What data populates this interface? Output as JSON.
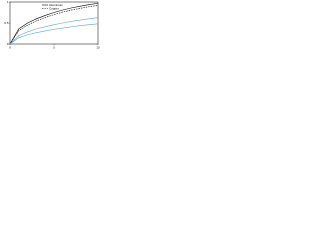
{
  "chart_data": {
    "type": "line",
    "x": [
      0,
      1,
      2,
      3,
      4,
      5,
      6,
      7,
      8,
      9,
      10
    ],
    "series": [
      {
        "name": "Aluminium",
        "color": "#000000",
        "dash": false,
        "values": [
          0,
          0.36,
          0.5,
          0.6,
          0.68,
          0.75,
          0.81,
          0.86,
          0.9,
          0.94,
          0.97
        ]
      },
      {
        "name": "Copper",
        "color": "#000000",
        "dash": true,
        "values": [
          0,
          0.32,
          0.45,
          0.55,
          0.63,
          0.7,
          0.76,
          0.81,
          0.85,
          0.89,
          0.92
        ]
      },
      {
        "color": "#5aa9d6",
        "dash": false,
        "values": [
          0,
          0.2,
          0.29,
          0.36,
          0.41,
          0.46,
          0.5,
          0.54,
          0.57,
          0.6,
          0.63
        ]
      },
      {
        "color": "#5aa9d6",
        "dash": false,
        "values": [
          0,
          0.15,
          0.22,
          0.27,
          0.31,
          0.35,
          0.38,
          0.41,
          0.44,
          0.46,
          0.48
        ]
      }
    ],
    "xlim": [
      0,
      10
    ],
    "xticks": [
      0,
      5,
      10
    ],
    "ylim": [
      0,
      1
    ],
    "yticks": [
      0,
      0.5,
      1
    ],
    "legend": "top-center"
  }
}
